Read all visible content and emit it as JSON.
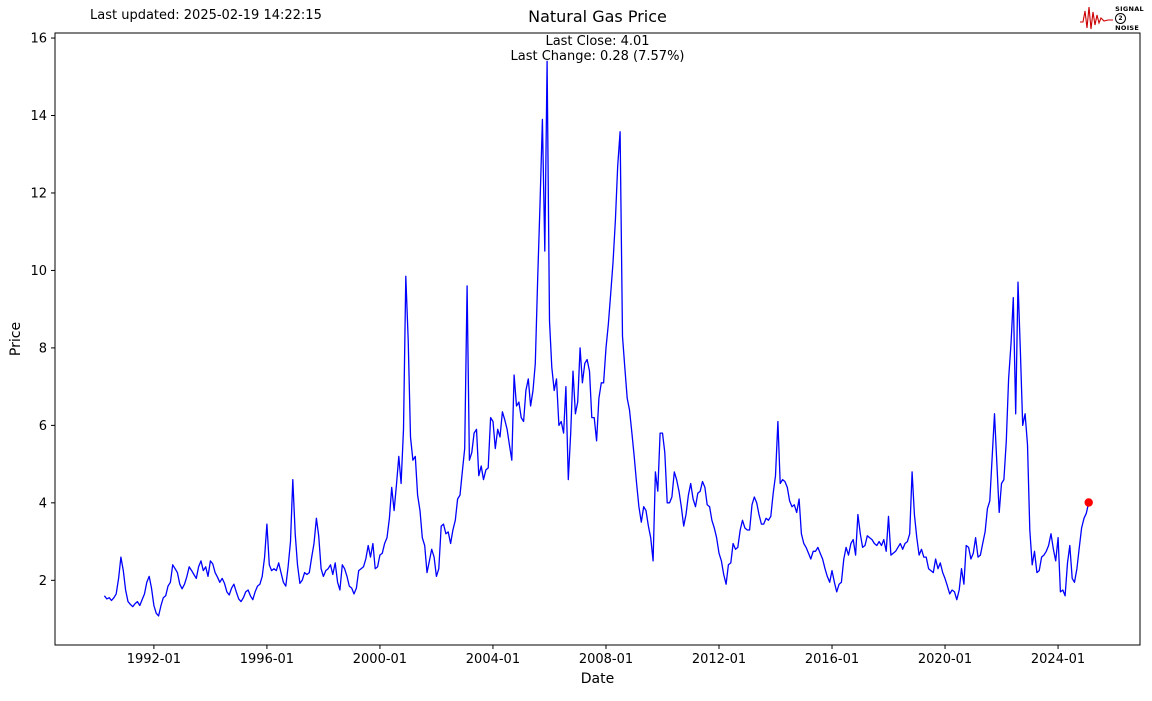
{
  "header": {
    "last_updated": "Last updated: 2025-02-19 14:22:15"
  },
  "logo": {
    "line1": "SIGNAL",
    "line2": "2",
    "line3": "NOISE",
    "waveform_color": "#cc0000"
  },
  "chart_data": {
    "type": "line",
    "title": "Natural Gas Price",
    "annotations": [
      "Last Close: 4.01",
      "Last Change: 0.28 (7.57%)"
    ],
    "xlabel": "Date",
    "ylabel": "Price",
    "grid": false,
    "legend": "none",
    "line_color": "#0000ff",
    "marker_color": "#ff0000",
    "xlim_years": [
      1988.5,
      2026.9
    ],
    "ylim": [
      0.33,
      16.13
    ],
    "xticks": [
      "1992-01",
      "1996-01",
      "2000-01",
      "2004-01",
      "2008-01",
      "2012-01",
      "2016-01",
      "2020-01",
      "2024-01"
    ],
    "yticks": [
      2,
      4,
      6,
      8,
      10,
      12,
      14,
      16
    ],
    "x_start": "1990-04",
    "x_freq": "monthly",
    "last_point": {
      "date": "2025-02",
      "value": 4.01
    },
    "series": [
      {
        "name": "Natural Gas Price",
        "values": [
          1.6,
          1.52,
          1.55,
          1.48,
          1.55,
          1.65,
          2.05,
          2.6,
          2.25,
          1.75,
          1.45,
          1.38,
          1.32,
          1.4,
          1.45,
          1.35,
          1.5,
          1.65,
          1.95,
          2.1,
          1.8,
          1.35,
          1.15,
          1.08,
          1.35,
          1.55,
          1.6,
          1.85,
          1.95,
          2.4,
          2.3,
          2.2,
          1.9,
          1.78,
          1.9,
          2.1,
          2.35,
          2.25,
          2.15,
          2.05,
          2.35,
          2.5,
          2.25,
          2.35,
          2.1,
          2.5,
          2.42,
          2.2,
          2.08,
          1.95,
          2.05,
          1.92,
          1.7,
          1.62,
          1.8,
          1.9,
          1.7,
          1.52,
          1.45,
          1.55,
          1.7,
          1.75,
          1.6,
          1.5,
          1.7,
          1.85,
          1.9,
          2.1,
          2.6,
          3.45,
          2.4,
          2.25,
          2.3,
          2.25,
          2.45,
          2.2,
          1.95,
          1.85,
          2.35,
          3.0,
          4.6,
          3.2,
          2.4,
          1.92,
          2.0,
          2.2,
          2.15,
          2.2,
          2.6,
          2.95,
          3.6,
          3.15,
          2.3,
          2.1,
          2.25,
          2.3,
          2.4,
          2.15,
          2.45,
          1.95,
          1.75,
          2.4,
          2.3,
          2.1,
          1.85,
          1.8,
          1.65,
          1.8,
          2.25,
          2.3,
          2.35,
          2.55,
          2.9,
          2.6,
          2.95,
          2.3,
          2.35,
          2.65,
          2.7,
          2.95,
          3.1,
          3.6,
          4.4,
          3.8,
          4.45,
          5.2,
          4.5,
          5.9,
          9.85,
          8.2,
          5.7,
          5.1,
          5.2,
          4.2,
          3.8,
          3.1,
          2.9,
          2.2,
          2.5,
          2.8,
          2.6,
          2.1,
          2.3,
          3.4,
          3.45,
          3.2,
          3.25,
          2.95,
          3.3,
          3.55,
          4.1,
          4.2,
          4.8,
          5.4,
          9.6,
          5.1,
          5.3,
          5.8,
          5.9,
          4.7,
          4.95,
          4.6,
          4.85,
          4.9,
          6.2,
          6.1,
          5.4,
          5.9,
          5.7,
          6.35,
          6.15,
          5.9,
          5.5,
          5.1,
          7.3,
          6.5,
          6.6,
          6.2,
          6.1,
          6.9,
          7.2,
          6.5,
          6.9,
          7.6,
          9.8,
          11.7,
          13.9,
          10.5,
          15.4,
          8.7,
          7.5,
          6.9,
          7.2,
          6.0,
          6.1,
          5.8,
          7.0,
          4.6,
          5.8,
          7.4,
          6.3,
          6.6,
          8.0,
          7.1,
          7.6,
          7.7,
          7.4,
          6.2,
          6.2,
          5.6,
          6.7,
          7.1,
          7.1,
          8.0,
          8.6,
          9.4,
          10.2,
          11.3,
          12.7,
          13.58,
          8.3,
          7.5,
          6.7,
          6.4,
          5.8,
          5.2,
          4.5,
          3.9,
          3.5,
          3.9,
          3.8,
          3.4,
          3.1,
          2.5,
          4.8,
          4.3,
          5.8,
          5.8,
          5.3,
          4.0,
          4.0,
          4.15,
          4.8,
          4.6,
          4.3,
          3.9,
          3.4,
          3.7,
          4.2,
          4.5,
          4.1,
          3.9,
          4.25,
          4.3,
          4.55,
          4.4,
          3.95,
          3.9,
          3.55,
          3.35,
          3.1,
          2.7,
          2.5,
          2.15,
          1.9,
          2.4,
          2.45,
          2.95,
          2.8,
          2.85,
          3.3,
          3.55,
          3.35,
          3.3,
          3.3,
          3.95,
          4.15,
          4.0,
          3.7,
          3.45,
          3.45,
          3.6,
          3.55,
          3.65,
          4.25,
          4.7,
          6.1,
          4.5,
          4.6,
          4.55,
          4.4,
          4.05,
          3.9,
          3.95,
          3.75,
          4.1,
          3.2,
          2.95,
          2.85,
          2.7,
          2.55,
          2.75,
          2.75,
          2.85,
          2.7,
          2.55,
          2.3,
          2.1,
          1.95,
          2.25,
          1.95,
          1.7,
          1.9,
          1.95,
          2.55,
          2.85,
          2.65,
          2.95,
          3.05,
          2.65,
          3.7,
          3.2,
          2.85,
          2.9,
          3.15,
          3.1,
          3.05,
          2.95,
          2.9,
          3.0,
          2.9,
          3.05,
          2.75,
          3.65,
          2.65,
          2.7,
          2.75,
          2.85,
          2.95,
          2.8,
          2.95,
          3.0,
          3.2,
          4.8,
          3.7,
          3.1,
          2.65,
          2.8,
          2.6,
          2.6,
          2.3,
          2.25,
          2.2,
          2.55,
          2.3,
          2.45,
          2.2,
          2.05,
          1.85,
          1.65,
          1.75,
          1.7,
          1.5,
          1.75,
          2.3,
          1.9,
          2.9,
          2.85,
          2.55,
          2.7,
          3.1,
          2.6,
          2.65,
          2.95,
          3.25,
          3.85,
          4.05,
          5.15,
          6.3,
          5.05,
          3.75,
          4.5,
          4.6,
          5.6,
          7.2,
          8.1,
          9.3,
          6.3,
          9.7,
          7.9,
          6.0,
          6.3,
          5.5,
          3.3,
          2.4,
          2.75,
          2.2,
          2.25,
          2.6,
          2.65,
          2.75,
          2.9,
          3.2,
          2.8,
          2.5,
          3.1,
          1.7,
          1.75,
          1.6,
          2.45,
          2.9,
          2.05,
          1.95,
          2.3,
          2.85,
          3.35,
          3.6,
          3.73,
          4.01
        ]
      }
    ]
  }
}
